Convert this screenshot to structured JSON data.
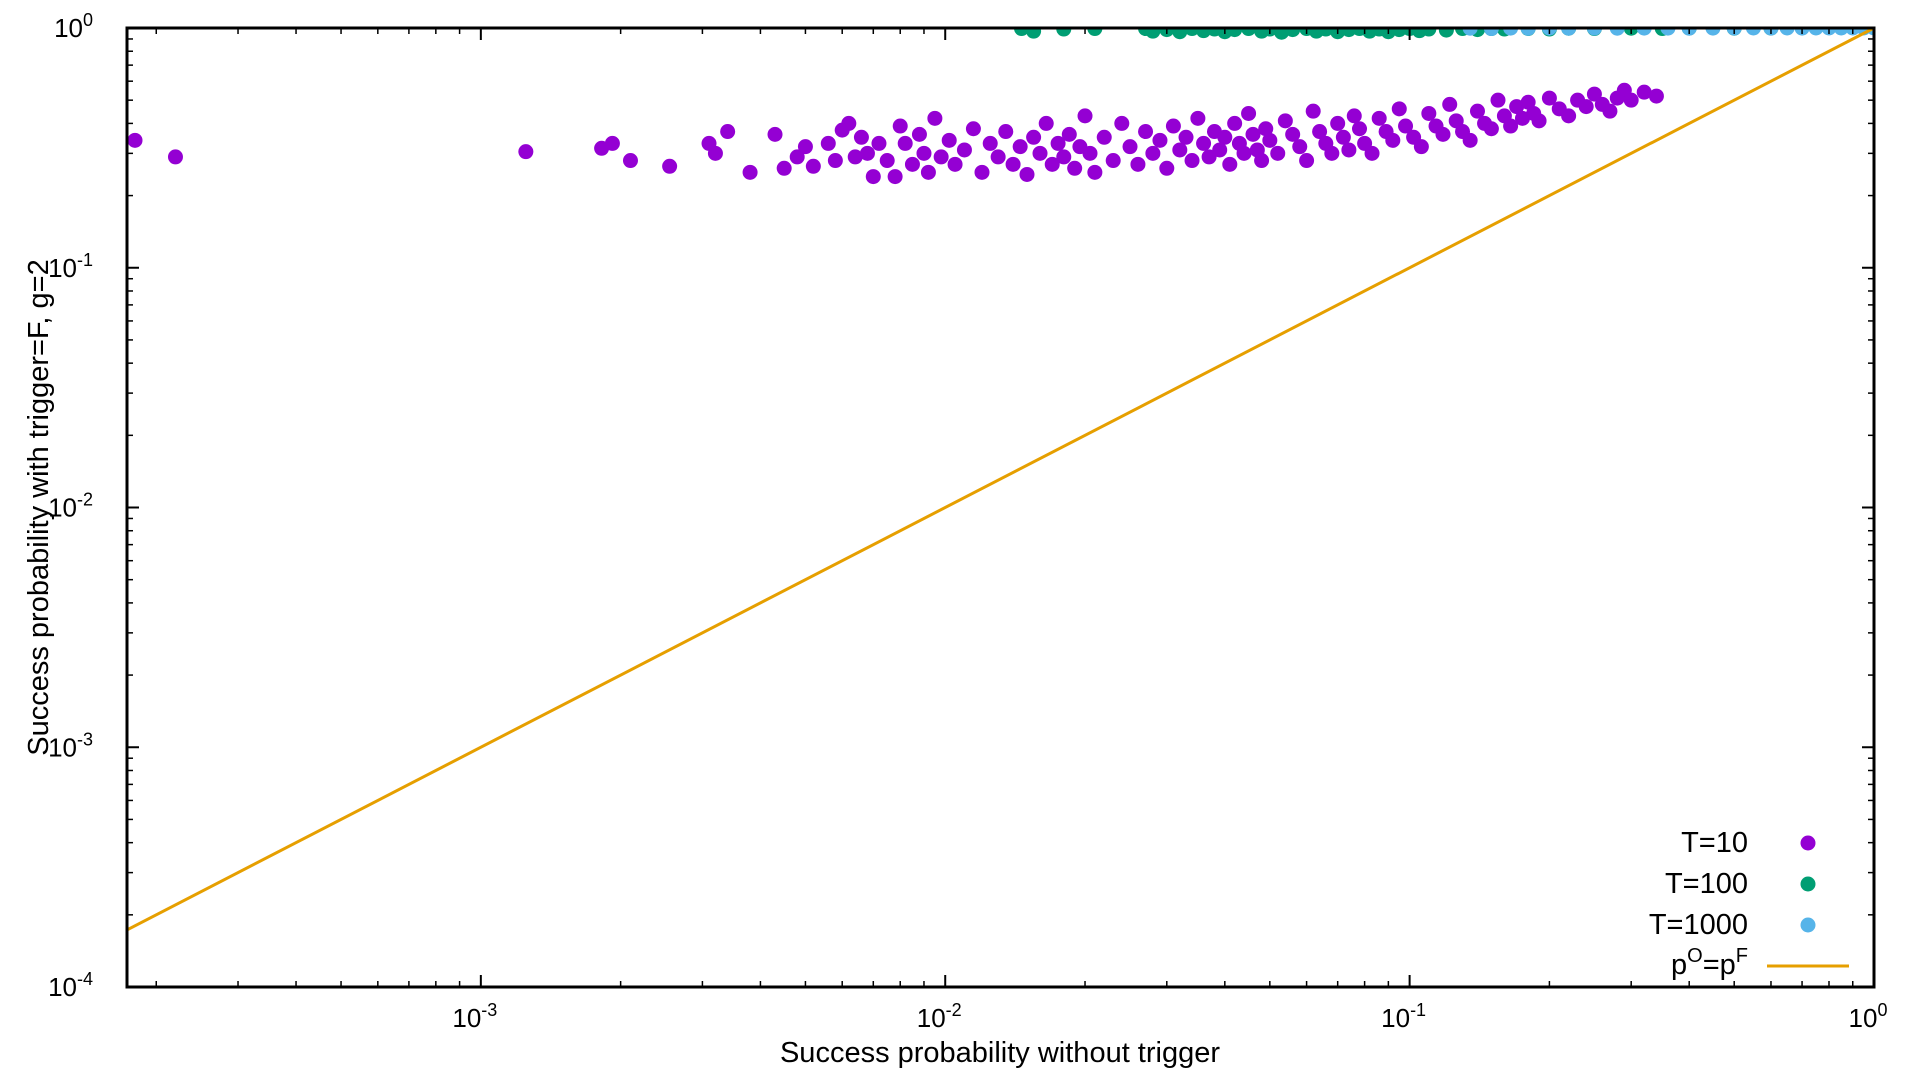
{
  "chart_data": {
    "type": "scatter",
    "title": "",
    "xlabel": "Success probability without trigger",
    "ylabel": "Success probability with trigger=F, g=2",
    "xscale": "log",
    "yscale": "log",
    "xlim": [
      0.000173,
      1
    ],
    "ylim": [
      0.0001,
      1
    ],
    "xticks": [
      {
        "base": "10",
        "exp": "-3",
        "value": 0.001
      },
      {
        "base": "10",
        "exp": "-2",
        "value": 0.01
      },
      {
        "base": "10",
        "exp": "-1",
        "value": 0.1
      },
      {
        "base": "10",
        "exp": "0",
        "value": 1
      }
    ],
    "yticks": [
      {
        "base": "10",
        "exp": "-4",
        "value": 0.0001
      },
      {
        "base": "10",
        "exp": "-3",
        "value": 0.001
      },
      {
        "base": "10",
        "exp": "-2",
        "value": 0.01
      },
      {
        "base": "10",
        "exp": "-1",
        "value": 0.1
      },
      {
        "base": "10",
        "exp": "0",
        "value": 1
      }
    ],
    "grid": false,
    "legend_position": "bottom-right",
    "series": [
      {
        "name": "T=10",
        "kind": "points",
        "color": "#9400d3",
        "points": [
          [
            0.00018,
            0.34
          ],
          [
            0.00022,
            0.29
          ],
          [
            0.00125,
            0.305
          ],
          [
            0.00182,
            0.315
          ],
          [
            0.00192,
            0.33
          ],
          [
            0.0021,
            0.28
          ],
          [
            0.00255,
            0.265
          ],
          [
            0.0031,
            0.33
          ],
          [
            0.0032,
            0.3
          ],
          [
            0.0034,
            0.37
          ],
          [
            0.0038,
            0.25
          ],
          [
            0.0043,
            0.36
          ],
          [
            0.0045,
            0.26
          ],
          [
            0.0048,
            0.29
          ],
          [
            0.005,
            0.32
          ],
          [
            0.0052,
            0.265
          ],
          [
            0.0056,
            0.33
          ],
          [
            0.0058,
            0.28
          ],
          [
            0.006,
            0.375
          ],
          [
            0.0062,
            0.4
          ],
          [
            0.0064,
            0.29
          ],
          [
            0.0066,
            0.35
          ],
          [
            0.0068,
            0.3
          ],
          [
            0.007,
            0.24
          ],
          [
            0.0072,
            0.33
          ],
          [
            0.0075,
            0.28
          ],
          [
            0.0078,
            0.24
          ],
          [
            0.008,
            0.39
          ],
          [
            0.0082,
            0.33
          ],
          [
            0.0085,
            0.27
          ],
          [
            0.0088,
            0.36
          ],
          [
            0.009,
            0.3
          ],
          [
            0.0092,
            0.25
          ],
          [
            0.0095,
            0.42
          ],
          [
            0.0098,
            0.29
          ],
          [
            0.0102,
            0.34
          ],
          [
            0.0105,
            0.27
          ],
          [
            0.011,
            0.31
          ],
          [
            0.0115,
            0.38
          ],
          [
            0.012,
            0.25
          ],
          [
            0.0125,
            0.33
          ],
          [
            0.013,
            0.29
          ],
          [
            0.0135,
            0.37
          ],
          [
            0.014,
            0.27
          ],
          [
            0.0145,
            0.32
          ],
          [
            0.015,
            0.245
          ],
          [
            0.0155,
            0.35
          ],
          [
            0.016,
            0.3
          ],
          [
            0.0165,
            0.4
          ],
          [
            0.017,
            0.27
          ],
          [
            0.0175,
            0.33
          ],
          [
            0.018,
            0.29
          ],
          [
            0.0185,
            0.36
          ],
          [
            0.019,
            0.26
          ],
          [
            0.0195,
            0.32
          ],
          [
            0.02,
            0.43
          ],
          [
            0.0205,
            0.3
          ],
          [
            0.021,
            0.25
          ],
          [
            0.022,
            0.35
          ],
          [
            0.023,
            0.28
          ],
          [
            0.024,
            0.4
          ],
          [
            0.025,
            0.32
          ],
          [
            0.026,
            0.27
          ],
          [
            0.027,
            0.37
          ],
          [
            0.028,
            0.3
          ],
          [
            0.029,
            0.34
          ],
          [
            0.03,
            0.26
          ],
          [
            0.031,
            0.39
          ],
          [
            0.032,
            0.31
          ],
          [
            0.033,
            0.35
          ],
          [
            0.034,
            0.28
          ],
          [
            0.035,
            0.42
          ],
          [
            0.036,
            0.33
          ],
          [
            0.037,
            0.29
          ],
          [
            0.038,
            0.37
          ],
          [
            0.039,
            0.31
          ],
          [
            0.04,
            0.35
          ],
          [
            0.041,
            0.27
          ],
          [
            0.042,
            0.4
          ],
          [
            0.043,
            0.33
          ],
          [
            0.044,
            0.3
          ],
          [
            0.045,
            0.44
          ],
          [
            0.046,
            0.36
          ],
          [
            0.047,
            0.31
          ],
          [
            0.048,
            0.28
          ],
          [
            0.049,
            0.38
          ],
          [
            0.05,
            0.34
          ],
          [
            0.052,
            0.3
          ],
          [
            0.054,
            0.41
          ],
          [
            0.056,
            0.36
          ],
          [
            0.058,
            0.32
          ],
          [
            0.06,
            0.28
          ],
          [
            0.062,
            0.45
          ],
          [
            0.064,
            0.37
          ],
          [
            0.066,
            0.33
          ],
          [
            0.068,
            0.3
          ],
          [
            0.07,
            0.4
          ],
          [
            0.072,
            0.35
          ],
          [
            0.074,
            0.31
          ],
          [
            0.076,
            0.43
          ],
          [
            0.078,
            0.38
          ],
          [
            0.08,
            0.33
          ],
          [
            0.083,
            0.3
          ],
          [
            0.086,
            0.42
          ],
          [
            0.089,
            0.37
          ],
          [
            0.092,
            0.34
          ],
          [
            0.095,
            0.46
          ],
          [
            0.098,
            0.39
          ],
          [
            0.102,
            0.35
          ],
          [
            0.106,
            0.32
          ],
          [
            0.11,
            0.44
          ],
          [
            0.114,
            0.39
          ],
          [
            0.118,
            0.36
          ],
          [
            0.122,
            0.48
          ],
          [
            0.126,
            0.41
          ],
          [
            0.13,
            0.37
          ],
          [
            0.135,
            0.34
          ],
          [
            0.14,
            0.45
          ],
          [
            0.145,
            0.4
          ],
          [
            0.15,
            0.38
          ],
          [
            0.155,
            0.5
          ],
          [
            0.16,
            0.43
          ],
          [
            0.165,
            0.39
          ],
          [
            0.17,
            0.47
          ],
          [
            0.175,
            0.42
          ],
          [
            0.18,
            0.49
          ],
          [
            0.185,
            0.44
          ],
          [
            0.19,
            0.41
          ],
          [
            0.2,
            0.51
          ],
          [
            0.21,
            0.46
          ],
          [
            0.22,
            0.43
          ],
          [
            0.23,
            0.5
          ],
          [
            0.24,
            0.47
          ],
          [
            0.25,
            0.53
          ],
          [
            0.26,
            0.48
          ],
          [
            0.27,
            0.45
          ],
          [
            0.28,
            0.51
          ],
          [
            0.29,
            0.55
          ],
          [
            0.3,
            0.5
          ],
          [
            0.32,
            0.54
          ],
          [
            0.34,
            0.52
          ]
        ]
      },
      {
        "name": "T=100",
        "kind": "points",
        "color": "#009e73",
        "points": [
          [
            0.0146,
            0.995
          ],
          [
            0.0155,
            0.97
          ],
          [
            0.018,
            0.99
          ],
          [
            0.021,
            0.995
          ],
          [
            0.027,
            0.995
          ],
          [
            0.028,
            0.97
          ],
          [
            0.03,
            0.985
          ],
          [
            0.032,
            0.965
          ],
          [
            0.034,
            0.995
          ],
          [
            0.036,
            0.975
          ],
          [
            0.038,
            0.99
          ],
          [
            0.04,
            0.965
          ],
          [
            0.042,
            0.985
          ],
          [
            0.045,
            0.995
          ],
          [
            0.048,
            0.97
          ],
          [
            0.05,
            0.99
          ],
          [
            0.053,
            0.96
          ],
          [
            0.056,
            0.985
          ],
          [
            0.06,
            0.995
          ],
          [
            0.063,
            0.97
          ],
          [
            0.066,
            0.99
          ],
          [
            0.07,
            0.965
          ],
          [
            0.074,
            0.985
          ],
          [
            0.078,
            0.995
          ],
          [
            0.082,
            0.97
          ],
          [
            0.086,
            0.99
          ],
          [
            0.09,
            0.965
          ],
          [
            0.095,
            0.985
          ],
          [
            0.1,
            0.995
          ],
          [
            0.105,
            0.975
          ],
          [
            0.11,
            0.99
          ],
          [
            0.12,
            0.98
          ],
          [
            0.13,
            0.995
          ],
          [
            0.14,
            0.985
          ],
          [
            0.15,
            0.995
          ],
          [
            0.16,
            0.99
          ],
          [
            0.18,
            0.995
          ],
          [
            0.2,
            0.99
          ],
          [
            0.22,
            0.998
          ],
          [
            0.25,
            0.995
          ],
          [
            0.3,
            0.998
          ],
          [
            0.35,
            0.995
          ],
          [
            0.4,
            0.999
          ],
          [
            0.5,
            0.998
          ],
          [
            0.6,
            0.999
          ]
        ]
      },
      {
        "name": "T=1000",
        "kind": "points",
        "color": "#56b4e9",
        "points": [
          [
            0.135,
            0.998
          ],
          [
            0.15,
            0.995
          ],
          [
            0.165,
            0.999
          ],
          [
            0.18,
            0.997
          ],
          [
            0.2,
            0.999
          ],
          [
            0.22,
            0.998
          ],
          [
            0.25,
            0.999
          ],
          [
            0.28,
            0.998
          ],
          [
            0.32,
            0.999
          ],
          [
            0.36,
            0.999
          ],
          [
            0.4,
            0.998
          ],
          [
            0.45,
            0.999
          ],
          [
            0.5,
            0.999
          ],
          [
            0.55,
            1.0
          ],
          [
            0.6,
            0.999
          ],
          [
            0.65,
            1.0
          ],
          [
            0.7,
            0.999
          ],
          [
            0.75,
            1.0
          ],
          [
            0.8,
            1.0
          ],
          [
            0.85,
            1.0
          ],
          [
            0.9,
            1.0
          ],
          [
            0.95,
            1.0
          ],
          [
            1.0,
            1.0
          ]
        ]
      },
      {
        "name": "p^O=p^F",
        "label_parts": [
          "p",
          "O",
          "=p",
          "F"
        ],
        "kind": "line",
        "color": "#e69f00",
        "points": [
          [
            0.000173,
            0.000173
          ],
          [
            1,
            1
          ]
        ]
      }
    ]
  }
}
